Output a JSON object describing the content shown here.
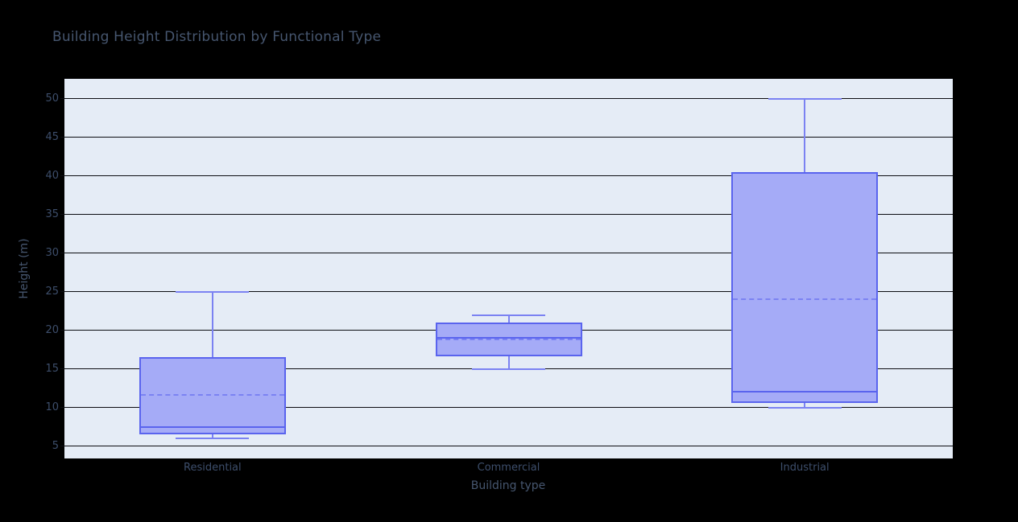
{
  "chart_data": {
    "type": "box",
    "title": "Building Height Distribution by Functional Type",
    "xlabel": "Building type",
    "ylabel": "Height (m)",
    "categories": [
      "Residential",
      "Commercial",
      "Industrial"
    ],
    "series": [
      {
        "name": "Residential",
        "min": 6,
        "q1": 6.5,
        "median": 7.5,
        "mean": 11.6,
        "q3": 16.5,
        "max": 25
      },
      {
        "name": "Commercial",
        "min": 15,
        "q1": 16.6,
        "median": 19,
        "mean": 18.8,
        "q3": 21,
        "max": 22
      },
      {
        "name": "Industrial",
        "min": 10,
        "q1": 10.6,
        "median": 12,
        "mean": 24,
        "q3": 40.5,
        "max": 50
      }
    ],
    "show_mean": true,
    "ylim": [
      3.4,
      52.6
    ],
    "yticks": [
      5,
      10,
      15,
      20,
      25,
      30,
      35,
      40,
      45,
      50
    ],
    "grid": true,
    "legend": "none",
    "colors": {
      "page_bg": "#000000",
      "plot_bg": "#e5ecf6",
      "grid": "#0c0d12",
      "tick_text": "#3d4e6b",
      "title_text": "#46566f",
      "box_border": "#5a64ee",
      "box_fill": "#a5abf7",
      "whisker": "#7b82f2",
      "median": "#5a64ee",
      "mean": "#7b82f2"
    }
  }
}
